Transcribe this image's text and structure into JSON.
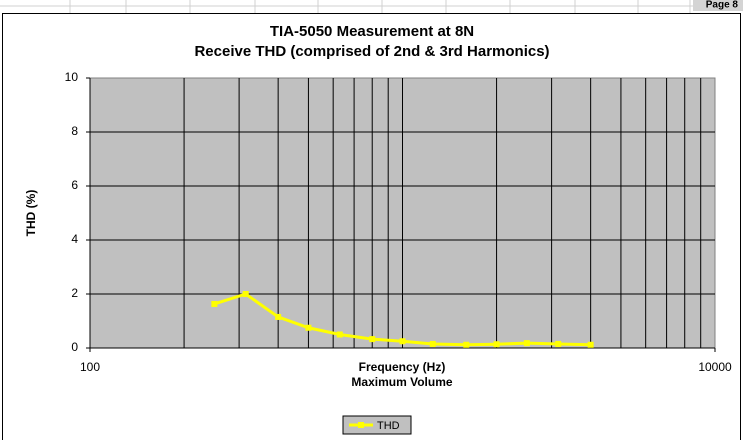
{
  "page_label": "Page 8",
  "chart_data": {
    "type": "line",
    "title": "TIA-5050 Measurement at 8N",
    "subtitle": "Receive THD  (comprised of 2nd & 3rd Harmonics)",
    "x_label": "Frequency (Hz)",
    "x_sublabel": "Maximum Volume",
    "y_label": "THD (%)",
    "x": [
      250,
      315,
      400,
      500,
      630,
      800,
      1000,
      1250,
      1600,
      2000,
      2500,
      3150,
      4000
    ],
    "series": [
      {
        "name": "THD",
        "color": "#ffff00",
        "values": [
          1.63,
          2.0,
          1.15,
          0.75,
          0.5,
          0.33,
          0.25,
          0.15,
          0.12,
          0.14,
          0.18,
          0.15,
          0.12
        ]
      }
    ],
    "xlog": true,
    "xlim": [
      100,
      10000
    ],
    "xticks": [
      100,
      10000
    ],
    "x_minor_ticks": [
      200,
      300,
      400,
      500,
      600,
      700,
      800,
      900,
      1000,
      2000,
      3000,
      4000,
      5000,
      6000,
      7000,
      8000,
      9000
    ],
    "ylim": [
      0,
      10
    ],
    "yticks": [
      0,
      2,
      4,
      6,
      8,
      10
    ],
    "grid": true,
    "legend": "bottom"
  }
}
